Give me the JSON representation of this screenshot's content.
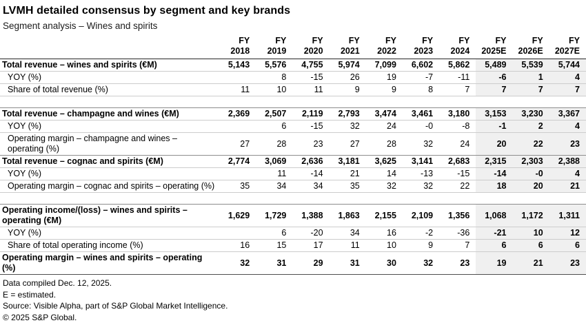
{
  "title": "LVMH detailed consensus by segment and key brands",
  "subtitle": "Segment analysis – Wines and spirits",
  "table": {
    "columns": [
      {
        "top": "FY",
        "year": "2018",
        "estimate": false
      },
      {
        "top": "FY",
        "year": "2019",
        "estimate": false
      },
      {
        "top": "FY",
        "year": "2020",
        "estimate": false
      },
      {
        "top": "FY",
        "year": "2021",
        "estimate": false
      },
      {
        "top": "FY",
        "year": "2022",
        "estimate": false
      },
      {
        "top": "FY",
        "year": "2023",
        "estimate": false
      },
      {
        "top": "FY",
        "year": "2024",
        "estimate": false
      },
      {
        "top": "FY",
        "year": "2025E",
        "estimate": true
      },
      {
        "top": "FY",
        "year": "2026E",
        "estimate": true
      },
      {
        "top": "FY",
        "year": "2027E",
        "estimate": true
      }
    ],
    "rows": [
      {
        "kind": "section",
        "label": "Total revenue – wines and spirits (€M)",
        "values": [
          "5,143",
          "5,576",
          "4,755",
          "5,974",
          "7,099",
          "6,602",
          "5,862",
          "5,489",
          "5,539",
          "5,744"
        ]
      },
      {
        "kind": "sub",
        "label": "YOY (%)",
        "values": [
          "",
          "8",
          "-15",
          "26",
          "19",
          "-7",
          "-11",
          "-6",
          "1",
          "4"
        ]
      },
      {
        "kind": "sub",
        "label": "Share of total revenue (%)",
        "values": [
          "11",
          "10",
          "11",
          "9",
          "9",
          "8",
          "7",
          "7",
          "7",
          "7"
        ]
      },
      {
        "kind": "spacer",
        "label": "",
        "values": []
      },
      {
        "kind": "section",
        "label": "Total revenue – champagne and wines (€M)",
        "values": [
          "2,369",
          "2,507",
          "2,119",
          "2,793",
          "3,474",
          "3,461",
          "3,180",
          "3,153",
          "3,230",
          "3,367"
        ]
      },
      {
        "kind": "sub",
        "label": "YOY (%)",
        "values": [
          "",
          "6",
          "-15",
          "32",
          "24",
          "-0",
          "-8",
          "-1",
          "2",
          "4"
        ]
      },
      {
        "kind": "sub",
        "label": "Operating margin – champagne and wines – operating (%)",
        "values": [
          "27",
          "28",
          "23",
          "27",
          "28",
          "32",
          "24",
          "20",
          "22",
          "23"
        ]
      },
      {
        "kind": "section",
        "label": "Total revenue – cognac and spirits (€M)",
        "values": [
          "2,774",
          "3,069",
          "2,636",
          "3,181",
          "3,625",
          "3,141",
          "2,683",
          "2,315",
          "2,303",
          "2,388"
        ]
      },
      {
        "kind": "sub",
        "label": "YOY (%)",
        "values": [
          "",
          "11",
          "-14",
          "21",
          "14",
          "-13",
          "-15",
          "-14",
          "-0",
          "4"
        ]
      },
      {
        "kind": "sub",
        "label": "Operating margin – cognac and spirits  – operating (%)",
        "values": [
          "35",
          "34",
          "34",
          "35",
          "32",
          "32",
          "22",
          "18",
          "20",
          "21"
        ]
      },
      {
        "kind": "spacer",
        "label": "",
        "values": []
      },
      {
        "kind": "section",
        "label": "Operating income/(loss) – wines and spirits – operating (€M)",
        "values": [
          "1,629",
          "1,729",
          "1,388",
          "1,863",
          "2,155",
          "2,109",
          "1,356",
          "1,068",
          "1,172",
          "1,311"
        ]
      },
      {
        "kind": "sub",
        "label": "YOY (%)",
        "values": [
          "",
          "6",
          "-20",
          "34",
          "16",
          "-2",
          "-36",
          "-21",
          "10",
          "12"
        ]
      },
      {
        "kind": "sub",
        "label": "Share of total operating income (%)",
        "values": [
          "16",
          "15",
          "17",
          "11",
          "10",
          "9",
          "7",
          "6",
          "6",
          "6"
        ]
      },
      {
        "kind": "total",
        "label": "Operating margin – wines and spirits – operating (%)",
        "values": [
          "32",
          "31",
          "29",
          "31",
          "30",
          "32",
          "23",
          "19",
          "21",
          "23"
        ]
      }
    ]
  },
  "footnotes": [
    "Data compiled Dec. 12, 2025.",
    "E = estimated.",
    "Source: Visible Alpha, part of S&P Global Market Intelligence.",
    "© 2025 S&P Global."
  ],
  "colors": {
    "estimate_bg": "#f0f0f0",
    "header_border": "#262626",
    "section_border": "#8c8c8c",
    "row_border": "#cccccc",
    "table_bottom_border": "#4d4d4d"
  }
}
